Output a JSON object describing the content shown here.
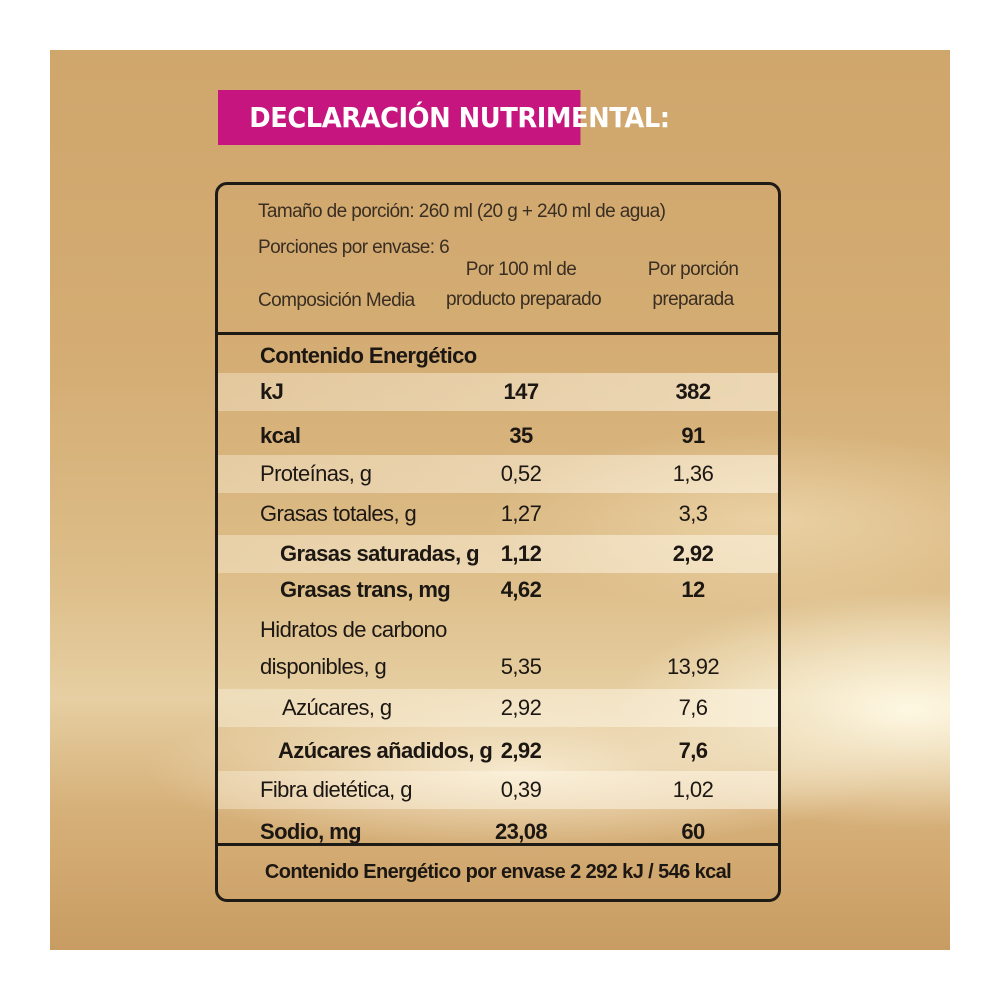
{
  "title": "DECLARACIÓN NUTRIMENTAL:",
  "header": {
    "serving_size": "Tamaño de porción:  260 ml (20 g + 240 ml de agua)",
    "servings_per_container": "Porciones por envase: 6",
    "composition_label": "Composición Media",
    "col1_line1": "Por 100 ml de",
    "col1_line2": "producto preparado",
    "col2_line1": "Por porción",
    "col2_line2": "preparada"
  },
  "rows": [
    {
      "name": "Contenido Energético",
      "per_100": "",
      "per_portion": ""
    },
    {
      "name": "kJ",
      "per_100": "147",
      "per_portion": "382"
    },
    {
      "name": "kcal",
      "per_100": "35",
      "per_portion": "91"
    },
    {
      "name": "Proteínas, g",
      "per_100": "0,52",
      "per_portion": "1,36"
    },
    {
      "name": "Grasas totales, g",
      "per_100": "1,27",
      "per_portion": "3,3"
    },
    {
      "name": "Grasas saturadas, g",
      "per_100": "1,12",
      "per_portion": "2,92"
    },
    {
      "name": "Grasas trans, mg",
      "per_100": "4,62",
      "per_portion": "12"
    },
    {
      "name": "Hidratos de carbono",
      "per_100": "",
      "per_portion": ""
    },
    {
      "name": "disponibles, g",
      "per_100": "5,35",
      "per_portion": "13,92"
    },
    {
      "name": "Azúcares, g",
      "per_100": "2,92",
      "per_portion": "7,6"
    },
    {
      "name": "Azúcares añadidos, g",
      "per_100": "2,92",
      "per_portion": "7,6"
    },
    {
      "name": "Fibra dietética, g",
      "per_100": "0,39",
      "per_portion": "1,02"
    },
    {
      "name": "Sodio, mg",
      "per_100": "23,08",
      "per_portion": "60"
    }
  ],
  "footer": "Contenido Energético por envase 2 292 kJ / 546 kcal",
  "colors": {
    "title_band": "#c7157f",
    "border": "#1e1a16",
    "background_gold": "#d4ad74"
  }
}
